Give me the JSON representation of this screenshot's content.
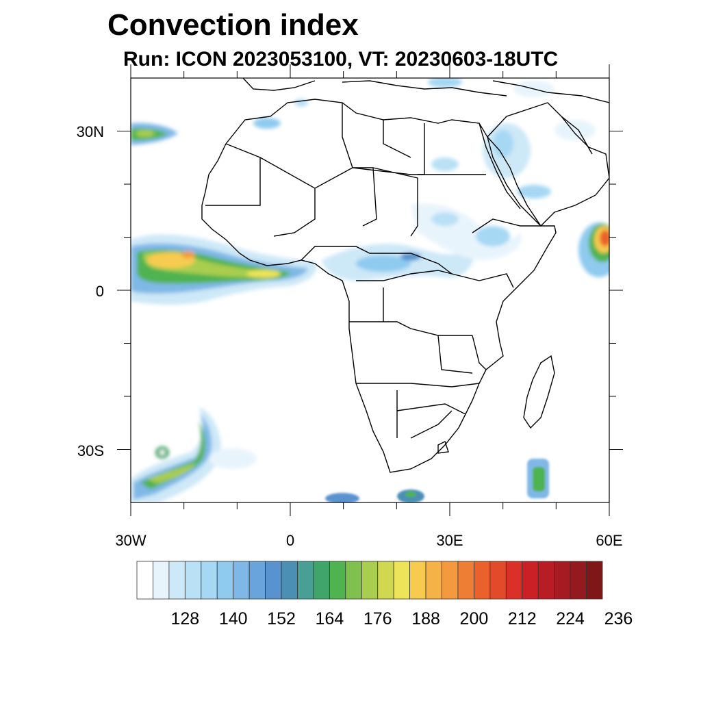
{
  "title": "Convection index",
  "subtitle": "Run: ICON 2023053100,  VT: 20230603-18UTC",
  "map": {
    "lon_range": [
      -30,
      60
    ],
    "lat_range": [
      -40,
      40
    ],
    "lat_labels": [
      "30N",
      "0",
      "30S"
    ],
    "lon_labels": [
      "30W",
      "0",
      "30E",
      "60E"
    ]
  },
  "colorbar": {
    "colors": [
      "#ffffff",
      "#e8f4fc",
      "#cde8f7",
      "#b9e0f5",
      "#a6d8f4",
      "#8fcaef",
      "#7fb8e6",
      "#6aa4dc",
      "#5893cf",
      "#4c8fb5",
      "#489f93",
      "#3fa56b",
      "#4fb34f",
      "#7fc04f",
      "#a9cd4f",
      "#cfd84f",
      "#ede45a",
      "#f6cb4f",
      "#f5b247",
      "#f39a3f",
      "#ef7e35",
      "#ea612c",
      "#e34a2a",
      "#da3028",
      "#cc2027",
      "#b81c25",
      "#a61a22",
      "#931a1e",
      "#7f1718"
    ],
    "labels": [
      "128",
      "140",
      "152",
      "164",
      "176",
      "188",
      "200",
      "212",
      "224",
      "236"
    ]
  }
}
